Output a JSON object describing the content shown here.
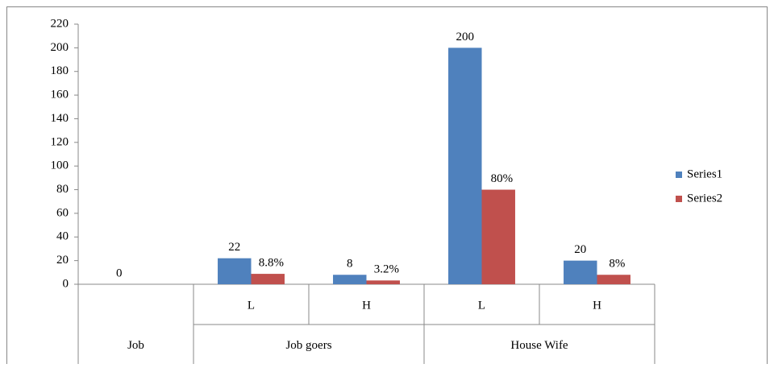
{
  "chart_data": {
    "type": "bar",
    "categories": [
      null,
      "L",
      "H",
      "L",
      "H"
    ],
    "group_labels": [
      "Job",
      "Job goers",
      "House Wife"
    ],
    "group_spans": [
      1,
      2,
      2
    ],
    "series": [
      {
        "name": "Series1",
        "color": "#4f81bd",
        "values": [
          0,
          22,
          8,
          200,
          20
        ]
      },
      {
        "name": "Series2",
        "color": "#c0504d",
        "values": [
          null,
          8.8,
          3.2,
          80,
          8
        ],
        "value_labels": [
          null,
          "8.8%",
          "3.2%",
          "80%",
          "8%"
        ]
      }
    ],
    "ylim": [
      0,
      220
    ],
    "yticks": [
      0,
      20,
      40,
      60,
      80,
      100,
      120,
      140,
      160,
      180,
      200,
      220
    ],
    "grid": false,
    "legend": "right"
  }
}
